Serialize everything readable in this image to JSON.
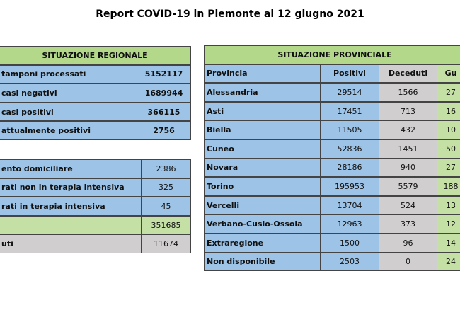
{
  "title": "Report COVID-19 in Piemonte al 12 giugno 2021",
  "regional": {
    "header": "SITUAZIONE REGIONALE",
    "rows": [
      {
        "label": "tamponi processati",
        "value": "5152117"
      },
      {
        "label": "casi negativi",
        "value": "1689944"
      },
      {
        "label": "casi positivi",
        "value": "366115"
      },
      {
        "label": "attualmente positivi",
        "value": "2756"
      }
    ]
  },
  "regional_detail": {
    "rows": [
      {
        "label": "ento domiciliare",
        "value": "2386",
        "tone": "blue"
      },
      {
        "label": "rati non in terapia intensiva",
        "value": "325",
        "tone": "blue"
      },
      {
        "label": "rati in terapia intensiva",
        "value": "45",
        "tone": "blue"
      },
      {
        "value": "351685",
        "tone": "green"
      },
      {
        "label": "uti",
        "value": "11674",
        "tone": "gray"
      }
    ]
  },
  "provincial": {
    "header": "SITUAZIONE PROVINCIALE",
    "columns": [
      "Provincia",
      "Positivi",
      "Deceduti",
      "Gu"
    ],
    "rows": [
      [
        "Alessandria",
        "29514",
        "1566",
        "27"
      ],
      [
        "Asti",
        "17451",
        "713",
        "16"
      ],
      [
        "Biella",
        "11505",
        "432",
        "10"
      ],
      [
        "Cuneo",
        "52836",
        "1451",
        "50"
      ],
      [
        "Novara",
        "28186",
        "940",
        "27"
      ],
      [
        "Torino",
        "195953",
        "5579",
        "188"
      ],
      [
        "Vercelli",
        "13704",
        "524",
        "13"
      ],
      [
        "Verbano-Cusio-Ossola",
        "12963",
        "373",
        "12"
      ],
      [
        "Extraregione",
        "1500",
        "96",
        "14"
      ],
      [
        "Non disponibile",
        "2503",
        "0",
        "24"
      ]
    ]
  }
}
